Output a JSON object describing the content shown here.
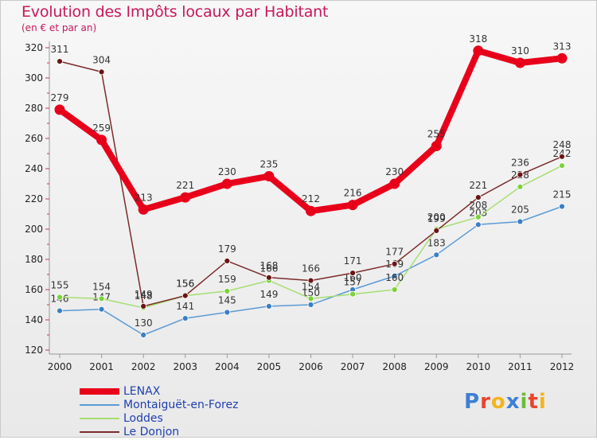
{
  "title": "Evolution des Impôts locaux par Habitant",
  "subtitle": "(en € et par an)",
  "logo": {
    "text": "Proxiti",
    "letters": [
      {
        "ch": "P",
        "color": "#3d7fd6"
      },
      {
        "ch": "r",
        "color": "#e8452c"
      },
      {
        "ch": "o",
        "color": "#f2b51b"
      },
      {
        "ch": "x",
        "color": "#3d7fd6"
      },
      {
        "ch": "i",
        "color": "#6dbb3a"
      },
      {
        "ch": "t",
        "color": "#e8452c"
      },
      {
        "ch": "i",
        "color": "#f2b51b"
      }
    ]
  },
  "chart_data": {
    "type": "line",
    "x": [
      2000,
      2001,
      2002,
      2003,
      2004,
      2005,
      2006,
      2007,
      2008,
      2009,
      2010,
      2011,
      2012
    ],
    "ylim": [
      120,
      320
    ],
    "yticks": [
      120,
      140,
      160,
      180,
      200,
      220,
      240,
      260,
      280,
      300,
      320
    ],
    "grid": false,
    "legend_position": "bottom-left",
    "series": [
      {
        "name": "LENAX",
        "color": "#e8001a",
        "marker": "#e8001a",
        "emphasis": true,
        "values": [
          279,
          259,
          213,
          221,
          230,
          235,
          212,
          216,
          230,
          255,
          318,
          310,
          313
        ]
      },
      {
        "name": "Montaiguët-en-Forez",
        "color": "#5b9bd5",
        "marker": "#3b7fc4",
        "emphasis": false,
        "values": [
          146,
          147,
          130,
          141,
          145,
          149,
          150,
          160,
          169,
          183,
          203,
          205,
          215
        ]
      },
      {
        "name": "Loddes",
        "color": "#a6df72",
        "marker": "#7bd23a",
        "emphasis": false,
        "values": [
          155,
          154,
          148,
          156,
          159,
          166,
          154,
          157,
          160,
          200,
          208,
          228,
          242
        ]
      },
      {
        "name": "Le Donjon",
        "color": "#7b2b2b",
        "marker": "#6b1414",
        "emphasis": false,
        "values": [
          311,
          304,
          149,
          156,
          179,
          168,
          166,
          171,
          177,
          199,
          221,
          236,
          248
        ]
      }
    ]
  }
}
